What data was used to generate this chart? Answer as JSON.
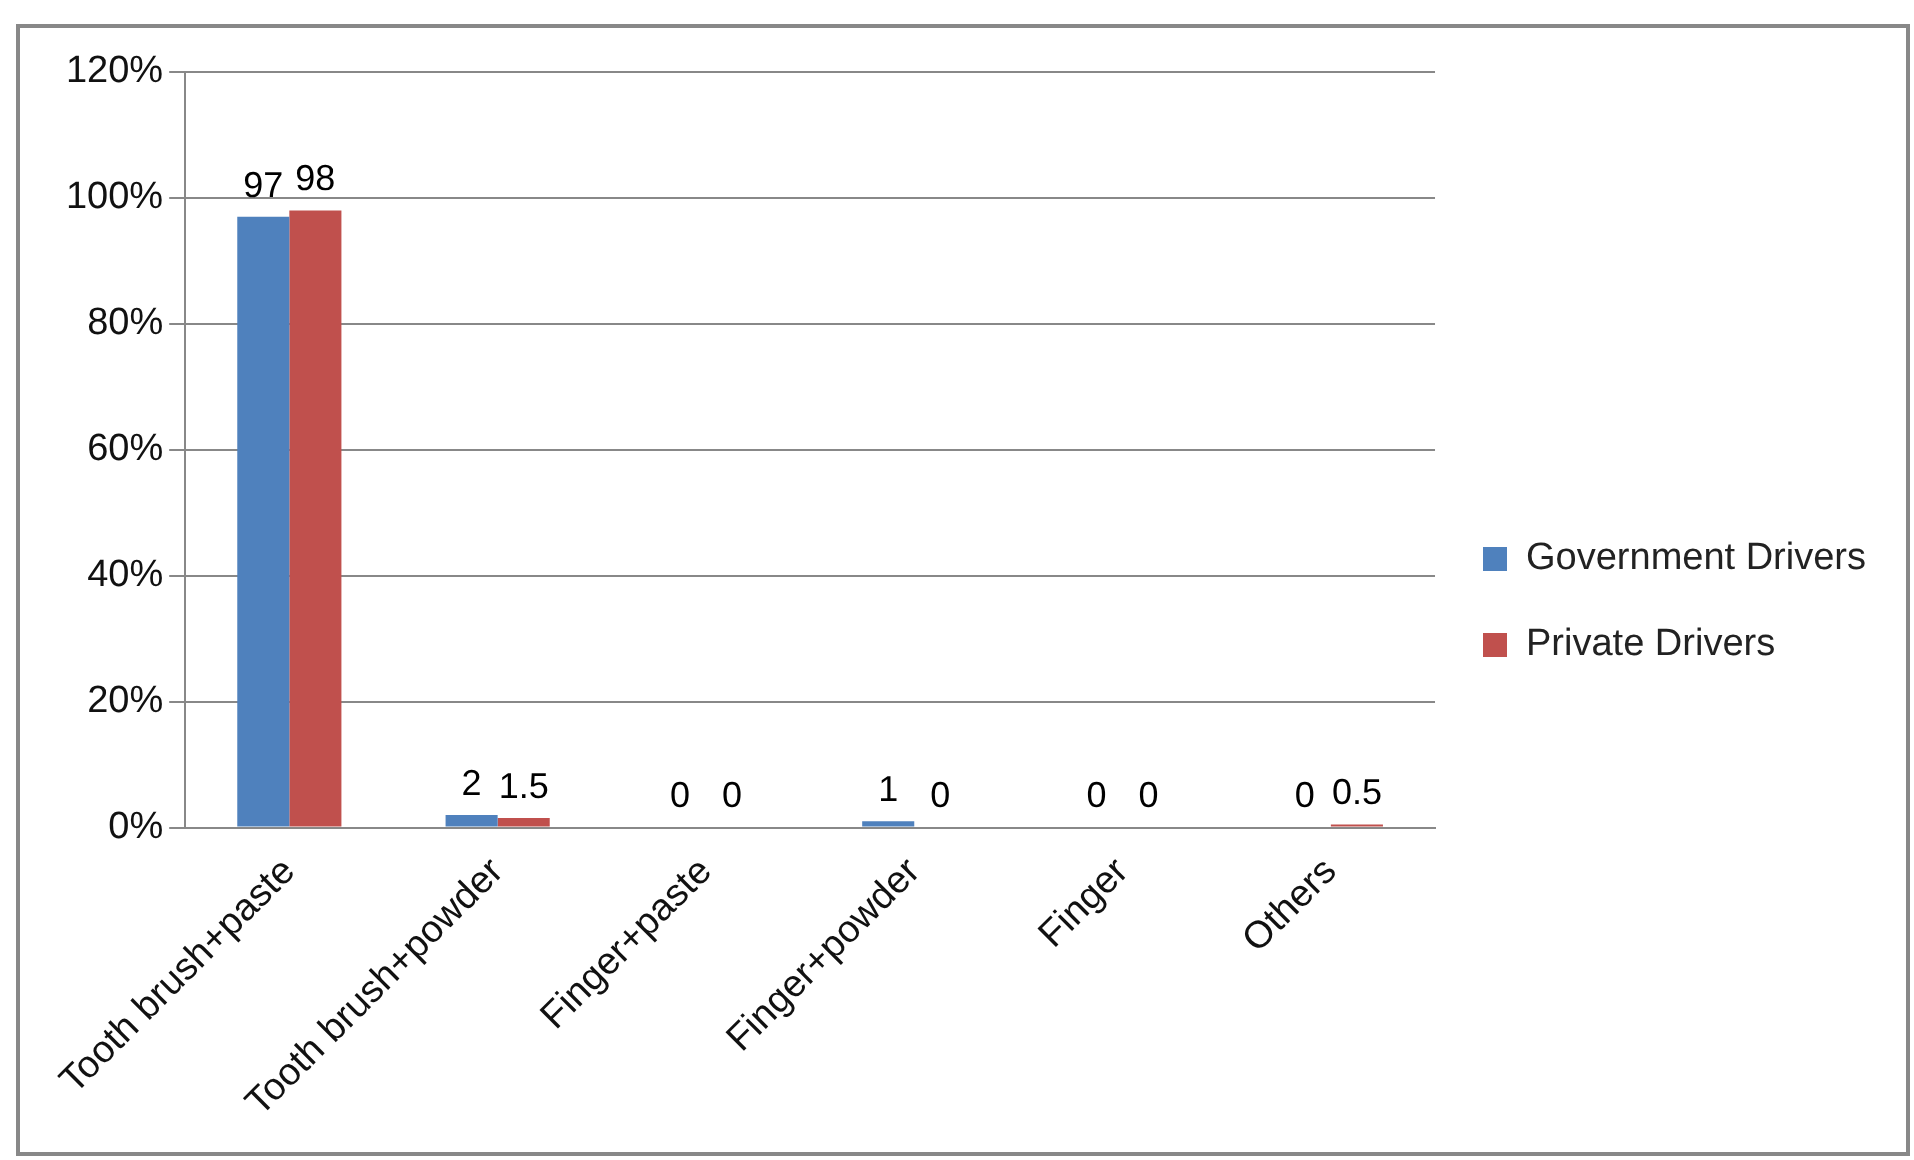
{
  "chart_data": {
    "type": "bar",
    "categories": [
      "Tooth brush+paste",
      "Tooth brush+powder",
      "Finger+paste",
      "Finger+powder",
      "Finger",
      "Others"
    ],
    "series": [
      {
        "name": "Government Drivers",
        "color": "#4f81bd",
        "values": [
          97,
          2,
          0,
          1,
          0,
          0
        ]
      },
      {
        "name": "Private Drivers",
        "color": "#c0504d",
        "values": [
          98,
          1.5,
          0,
          0,
          0,
          0.5
        ]
      }
    ],
    "ylim": [
      0,
      120
    ],
    "yticks": [
      {
        "value": 0,
        "label": "0%"
      },
      {
        "value": 20,
        "label": "20%"
      },
      {
        "value": 40,
        "label": "40%"
      },
      {
        "value": 60,
        "label": "60%"
      },
      {
        "value": 80,
        "label": "80%"
      },
      {
        "value": 100,
        "label": "100%"
      },
      {
        "value": 120,
        "label": "120%"
      }
    ],
    "grid": "y",
    "legend": "right",
    "data_labels": true
  }
}
